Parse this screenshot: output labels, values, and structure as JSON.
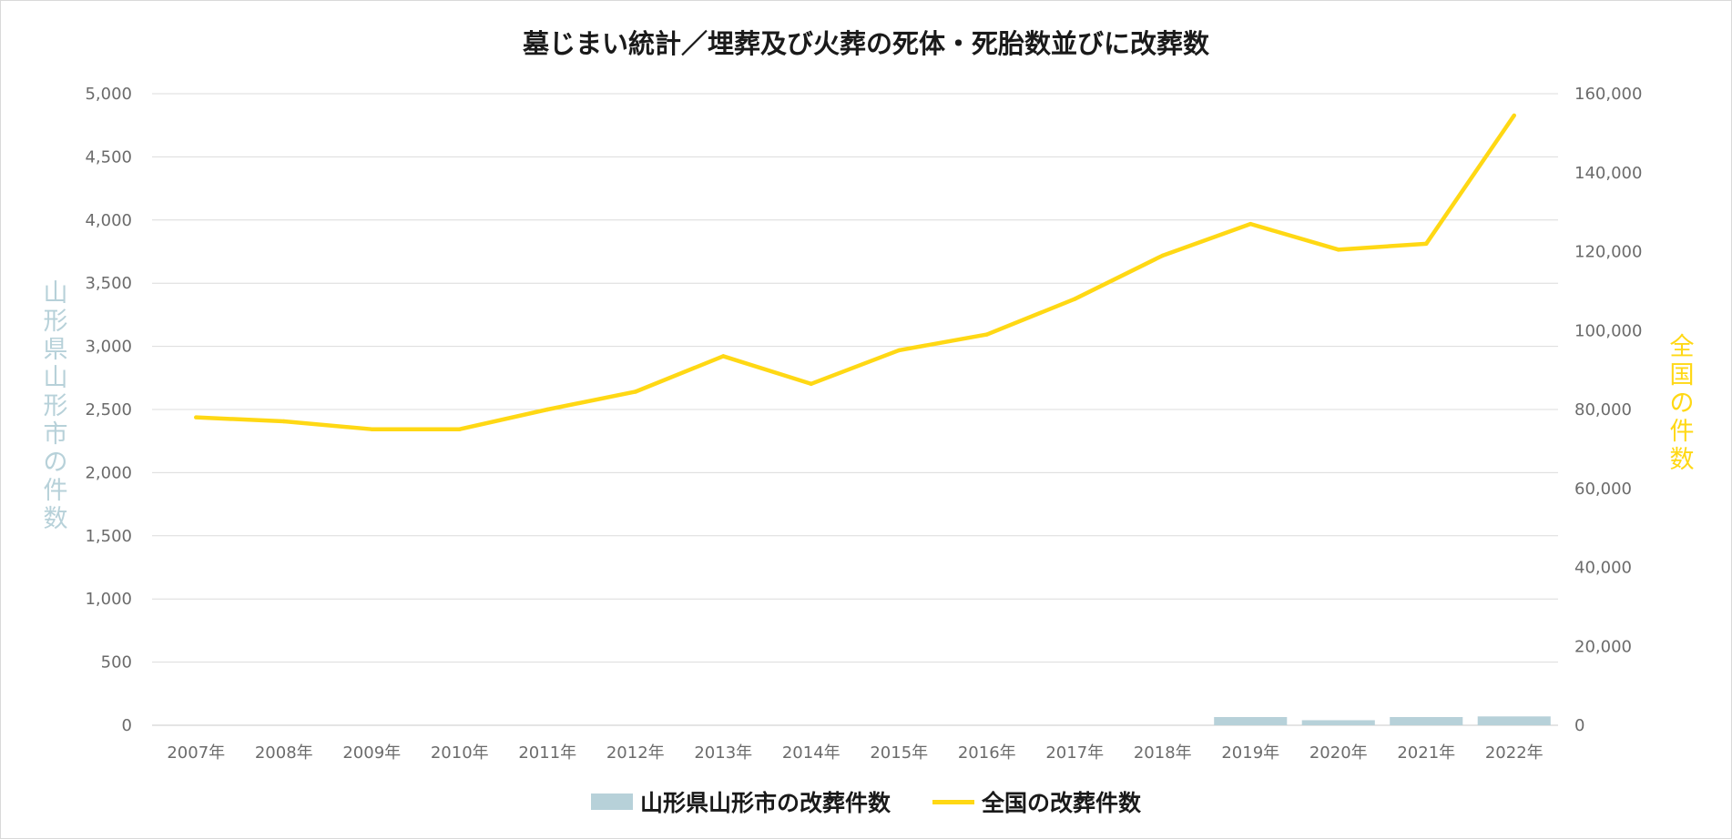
{
  "chart_data": {
    "type": "bar+line",
    "title": "墓じまい統計／埋葬及び火葬の死体・死胎数並びに改葬数",
    "categories": [
      "2007年",
      "2008年",
      "2009年",
      "2010年",
      "2011年",
      "2012年",
      "2013年",
      "2014年",
      "2015年",
      "2016年",
      "2017年",
      "2018年",
      "2019年",
      "2020年",
      "2021年",
      "2022年"
    ],
    "y_left": {
      "label": "山形県山形市の件数",
      "range": [
        0,
        5000
      ],
      "ticks": [
        "0",
        "500",
        "1,000",
        "1,500",
        "2,000",
        "2,500",
        "3,000",
        "3,500",
        "4,000",
        "4,500",
        "5,000"
      ]
    },
    "y_right": {
      "label": "全国の件数",
      "range": [
        0,
        160000
      ],
      "ticks": [
        "0",
        "20,000",
        "40,000",
        "60,000",
        "80,000",
        "100,000",
        "120,000",
        "140,000",
        "160,000"
      ]
    },
    "series": [
      {
        "name": "山形県山形市の改葬件数",
        "type": "bar",
        "axis": "left",
        "color": "#b7d1d9",
        "values": [
          null,
          null,
          null,
          null,
          null,
          null,
          null,
          null,
          null,
          null,
          null,
          null,
          65,
          40,
          65,
          70
        ]
      },
      {
        "name": "全国の改葬件数",
        "type": "line",
        "axis": "right",
        "color": "#ffd814",
        "values": [
          78000,
          77000,
          75000,
          75000,
          80000,
          84500,
          93500,
          86500,
          95000,
          99000,
          108000,
          119000,
          127000,
          120500,
          122000,
          154500
        ]
      }
    ],
    "grid": true,
    "legend": "bottom"
  }
}
